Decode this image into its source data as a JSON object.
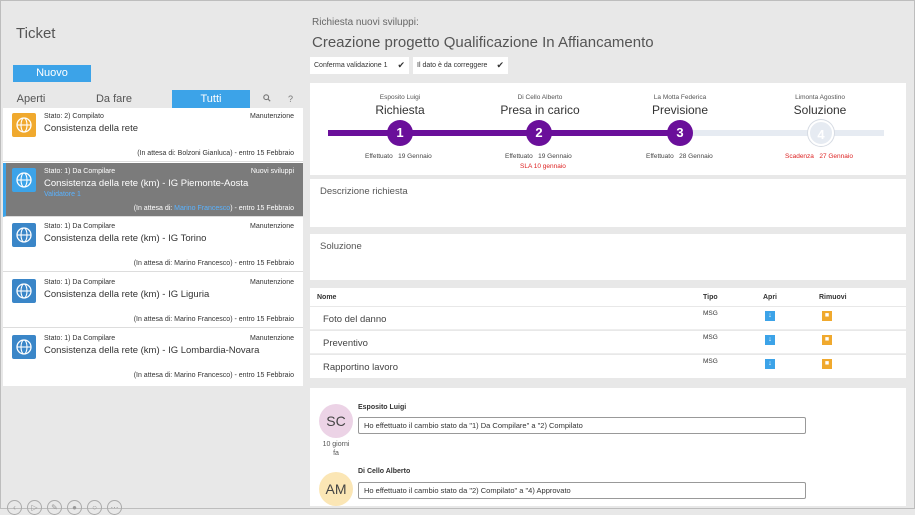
{
  "left": {
    "title": "Ticket",
    "new_button": "Nuovo",
    "tabs": [
      "Aperti",
      "Da fare",
      "Tutti"
    ],
    "search_icon": "search-icon",
    "help_icon": "?",
    "tickets": [
      {
        "stato": "Stato: 2) Compilato",
        "name": "Consistenza della rete",
        "category": "Manutenzione",
        "validator": "",
        "wait_prefix": "(In attesa di: ",
        "wait_who": "Bolzoni Gianluca",
        "wait_suffix": ") - entro 15 Febbraio",
        "icon_color": "#f0a92e"
      },
      {
        "stato": "Stato: 1) Da Compilare",
        "name": "Consistenza della rete (km) - IG Piemonte-Aosta",
        "category": "Nuovi sviluppi",
        "validator": "Validatore 1",
        "wait_prefix": "(In attesa di: ",
        "wait_who": "Marino Francesco",
        "wait_suffix": ") - entro 15 Febbraio",
        "icon_color": "#3ca3e8"
      },
      {
        "stato": "Stato: 1) Da Compilare",
        "name": "Consistenza della rete (km) - IG Torino",
        "category": "Manutenzione",
        "validator": "",
        "wait_prefix": "(In attesa di: ",
        "wait_who": "Marino Francesco",
        "wait_suffix": ") - entro 15 Febbraio",
        "icon_color": "#3a86c8"
      },
      {
        "stato": "Stato: 1) Da Compilare",
        "name": "Consistenza della rete (km) - IG Liguria",
        "category": "Manutenzione",
        "validator": "",
        "wait_prefix": "(In attesa di: ",
        "wait_who": "Marino Francesco",
        "wait_suffix": ") - entro 15 Febbraio",
        "icon_color": "#3a86c8"
      },
      {
        "stato": "Stato: 1) Da Compilare",
        "name": "Consistenza della rete (km) - IG Lombardia-Novara",
        "category": "Manutenzione",
        "validator": "",
        "wait_prefix": "(In attesa di: ",
        "wait_who": "Marino Francesco",
        "wait_suffix": ") - entro 15 Febbraio",
        "icon_color": "#3a86c8"
      }
    ]
  },
  "right": {
    "subtitle": "Richiesta nuovi sviluppi:",
    "title": "Creazione progetto Qualificazione In Affiancamento",
    "chips": [
      "Conferma validazione 1",
      "Il dato è da correggere"
    ],
    "stages": [
      {
        "person": "Esposito Luigi",
        "name": "Richiesta",
        "num": "1",
        "eff_label": "Effettuato",
        "eff_date": "19 Gennaio",
        "extra": ""
      },
      {
        "person": "Di Cello Alberto",
        "name": "Presa in carico",
        "num": "2",
        "eff_label": "Effettuato",
        "eff_date": "19 Gennaio",
        "extra": "SLA 10 gennaio"
      },
      {
        "person": "La Motta Federica",
        "name": "Previsione",
        "num": "3",
        "eff_label": "Effettuato",
        "eff_date": "28 Gennaio",
        "extra": ""
      },
      {
        "person": "Limonta Agostino",
        "name": "Soluzione",
        "num": "4",
        "eff_label": "Scadenza",
        "eff_date": "27 Gennaio",
        "extra": ""
      }
    ],
    "progress_color": "#6a0f9a",
    "descrizione_label": "Descrizione richiesta",
    "soluzione_label": "Soluzione",
    "attachments": {
      "headers": {
        "name": "Nome",
        "type": "Tipo",
        "open": "Apri",
        "remove": "Rimuovi"
      },
      "rows": [
        {
          "name": "Foto del danno",
          "type": "MSG"
        },
        {
          "name": "Preventivo",
          "type": "MSG"
        },
        {
          "name": "Rapportino lavoro",
          "type": "MSG"
        }
      ]
    },
    "comments": [
      {
        "initials": "SC",
        "author": "Esposito Luigi",
        "text": "Ho effettuato il cambio stato da \"1) Da Compilare\" a \"2) Compilato",
        "ago_1": "10 giorni",
        "ago_2": "fa",
        "avatar_color": "#ecd3e6"
      },
      {
        "initials": "AM",
        "author": "Di Cello Alberto",
        "text": "Ho effettuato il cambio stato da \"2) Compilato\" a \"4) Approvato",
        "ago_1": "",
        "ago_2": "",
        "avatar_color": "#fbe6b5"
      }
    ]
  }
}
